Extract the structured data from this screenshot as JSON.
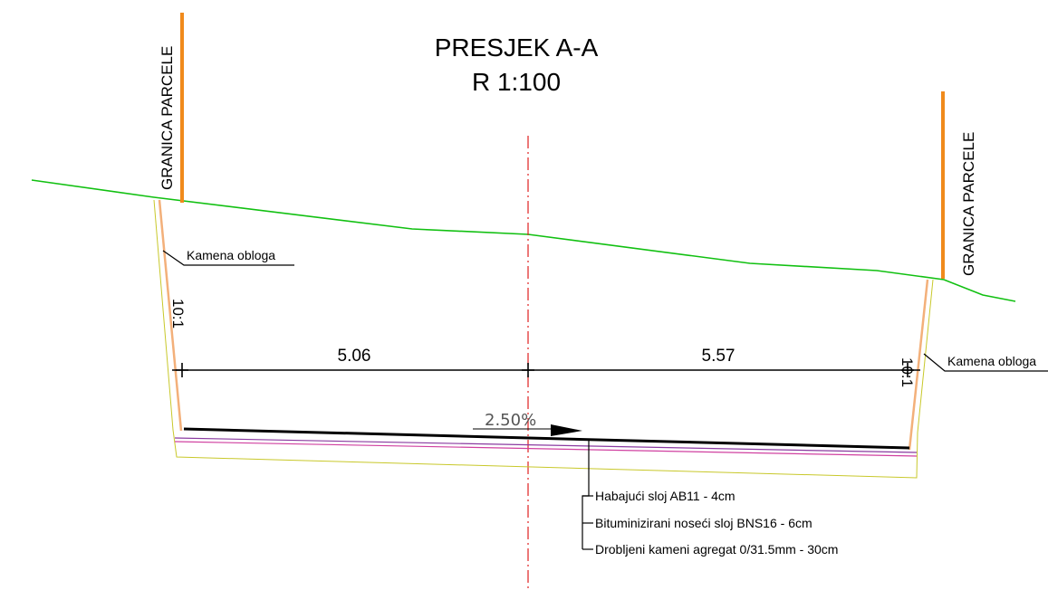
{
  "title": {
    "line1": "PRESJEK A-A",
    "line2": "R 1:100"
  },
  "parcel_boundary": {
    "left_label": "GRANICA PARCELE",
    "right_label": "GRANICA PARCELE"
  },
  "lining": {
    "left_label": "Kamena obloga",
    "right_label": "Kamena obloga"
  },
  "side_slope": {
    "left": "10:1",
    "right": "10:1"
  },
  "dimensions": {
    "left": "5.06",
    "right": "5.57"
  },
  "cross_slope": {
    "label": "2.50%"
  },
  "layers": [
    {
      "label": "Habajući sloj AB11 - 4cm"
    },
    {
      "label": "Bituminizirani noseći sloj BNS16 - 6cm"
    },
    {
      "label": "Drobljeni kameni agregat 0/31.5mm - 30cm"
    }
  ],
  "colors": {
    "terrain": "#11c011",
    "boundary": "#f08a1c",
    "axis": "#e02020",
    "lining": "#f3b07a",
    "base": "#c8c82a",
    "layer_pink": "#d040a0",
    "layer_purple": "#8a3aa0",
    "pavement": "#000000"
  }
}
